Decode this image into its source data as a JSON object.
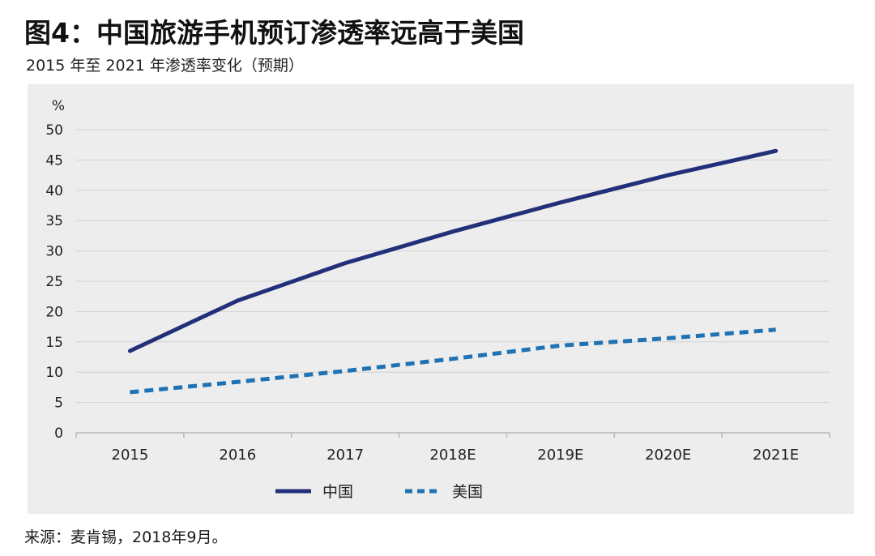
{
  "figure": {
    "title": "图4：中国旅游手机预订渗透率远高于美国",
    "subtitle": "2015 年至 2021 年渗透率变化（预期）",
    "source": "来源：麦肯锡，2018年9月。"
  },
  "colors": {
    "panel_bg": "#ededed",
    "grid": "#d2d2d2",
    "china": "#22307a",
    "usa": "#1f72b3"
  },
  "chart_data": {
    "type": "line",
    "title": "2015 年至 2021 年渗透率变化（预期）",
    "xlabel": "",
    "ylabel": "%",
    "ylim": [
      0,
      50
    ],
    "yticks": [
      "0",
      "5",
      "10",
      "15",
      "20",
      "25",
      "30",
      "35",
      "40",
      "45",
      "50"
    ],
    "categories": [
      "2015",
      "2016",
      "2017",
      "2018E",
      "2019E",
      "2020E",
      "2021E"
    ],
    "series": [
      {
        "name": "中国",
        "style": "solid",
        "values": [
          13.5,
          21.8,
          28,
          33.2,
          38,
          42.5,
          46.5
        ]
      },
      {
        "name": "美国",
        "style": "dashed",
        "values": [
          6.7,
          8.4,
          10.2,
          12.2,
          14.4,
          15.6,
          17
        ]
      }
    ],
    "grid": true,
    "legend_position": "bottom"
  }
}
